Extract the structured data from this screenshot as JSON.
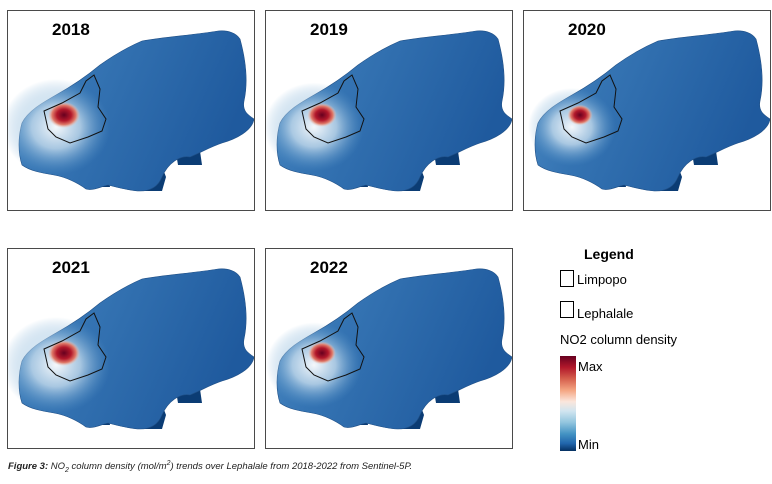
{
  "panels": [
    {
      "year": "2018",
      "hotspot": 1.0
    },
    {
      "year": "2019",
      "hotspot": 0.9
    },
    {
      "year": "2020",
      "hotspot": 0.75
    },
    {
      "year": "2021",
      "hotspot": 1.0
    },
    {
      "year": "2022",
      "hotspot": 0.85
    }
  ],
  "legend": {
    "title": "Legend",
    "limpopo": "Limpopo",
    "lephalale": "Lephalale",
    "density_title": "NO2 column density",
    "max": "Max",
    "min": "Min"
  },
  "caption": {
    "label": "Figure 3:",
    "text_a": " NO",
    "sub": "2",
    "text_b": " column density (mol/m",
    "sup": "2",
    "text_c": ") trends over Lephalale from 2018-2022 from Sentinel-5P."
  },
  "colors": {
    "max": "#67001f",
    "min": "#053061",
    "province": "#2b6aa8"
  }
}
